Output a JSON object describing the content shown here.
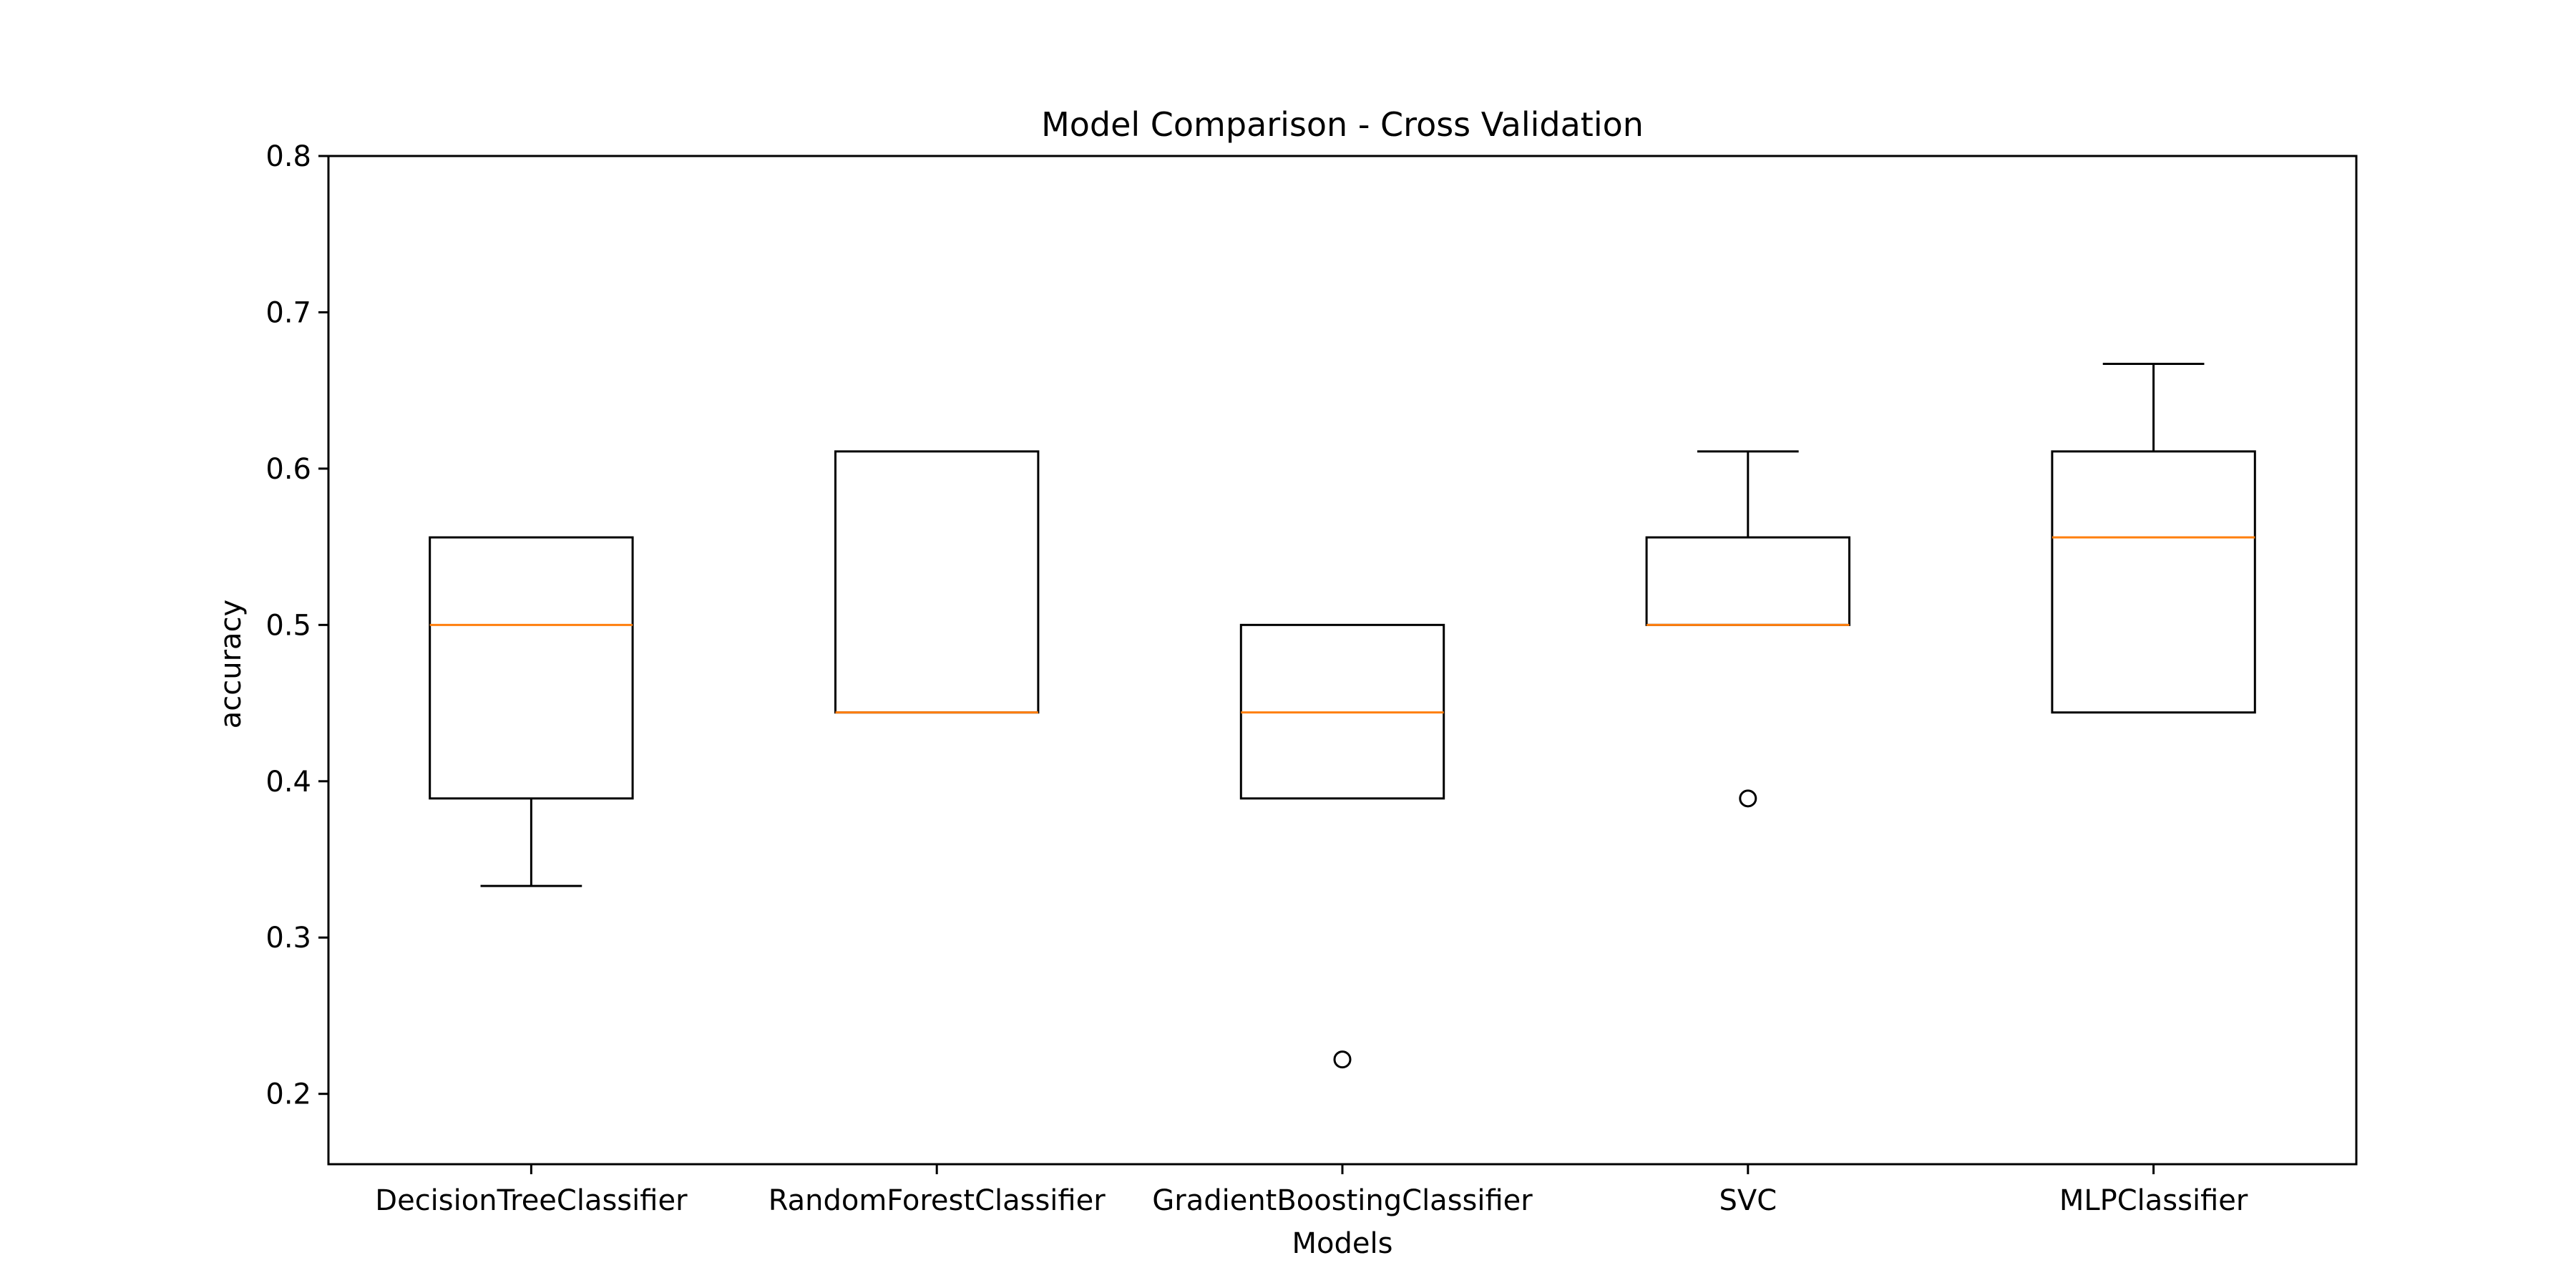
{
  "chart_data": {
    "type": "box",
    "title": "Model Comparison - Cross Validation",
    "xlabel": "Models",
    "ylabel": "accuracy",
    "ylim": [
      0.155,
      0.8
    ],
    "yticks": [
      0.2,
      0.3,
      0.4,
      0.5,
      0.6,
      0.7,
      0.8
    ],
    "ytick_labels": [
      "0.2",
      "0.3",
      "0.4",
      "0.5",
      "0.6",
      "0.7",
      "0.8"
    ],
    "grid": false,
    "colors": {
      "box": "#000000",
      "median": "#ff7f0e",
      "background": "#ffffff"
    },
    "categories": [
      "DecisionTreeClassifier",
      "RandomForestClassifier",
      "GradientBoostingClassifier",
      "SVC",
      "MLPClassifier"
    ],
    "boxes": [
      {
        "whisker_low": 0.333,
        "q1": 0.389,
        "median": 0.5,
        "q3": 0.556,
        "whisker_high": 0.556,
        "outliers": []
      },
      {
        "whisker_low": 0.444,
        "q1": 0.444,
        "median": 0.444,
        "q3": 0.611,
        "whisker_high": 0.611,
        "outliers": []
      },
      {
        "whisker_low": 0.389,
        "q1": 0.389,
        "median": 0.444,
        "q3": 0.5,
        "whisker_high": 0.5,
        "outliers": [
          0.222
        ]
      },
      {
        "whisker_low": 0.5,
        "q1": 0.5,
        "median": 0.5,
        "q3": 0.556,
        "whisker_high": 0.611,
        "outliers": [
          0.389
        ]
      },
      {
        "whisker_low": 0.444,
        "q1": 0.444,
        "median": 0.556,
        "q3": 0.611,
        "whisker_high": 0.667,
        "outliers": []
      }
    ]
  }
}
